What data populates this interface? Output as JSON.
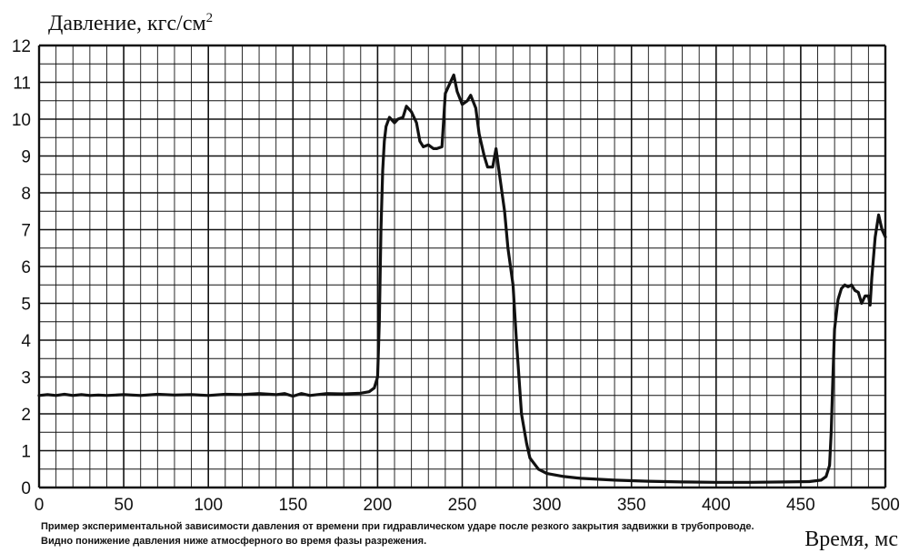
{
  "chart_data": {
    "type": "line",
    "ylabel_main": "Давление, кгс/см",
    "ylabel_sup": "2",
    "xlabel": "Время, мс",
    "caption": [
      "Пример экспериментальной зависимости давления от времени при гидравлическом ударе после резкого закрытия задвижки в трубопроводе.",
      "Видно понижение давления ниже атмосферного во время фазы разрежения."
    ],
    "xlim": [
      0,
      500
    ],
    "ylim": [
      0,
      12
    ],
    "x_ticks": [
      0,
      50,
      100,
      150,
      200,
      250,
      300,
      350,
      400,
      450,
      500
    ],
    "y_ticks": [
      0,
      1,
      2,
      3,
      4,
      5,
      6,
      7,
      8,
      9,
      10,
      11,
      12
    ],
    "grid": true,
    "colors": {
      "line": "#111111",
      "grid": "#111111",
      "background": "#ffffff"
    },
    "series": [
      {
        "x": [
          0,
          5,
          10,
          15,
          20,
          25,
          30,
          35,
          40,
          50,
          60,
          70,
          80,
          90,
          100,
          110,
          120,
          130,
          140,
          145,
          150,
          155,
          160,
          170,
          180,
          190,
          195,
          198,
          200,
          201,
          202,
          203,
          204,
          205,
          207,
          210,
          212,
          215,
          217,
          220,
          223,
          225,
          227,
          230,
          233,
          235,
          238,
          240,
          242,
          245,
          247,
          250,
          253,
          255,
          258,
          260,
          263,
          265,
          268,
          270,
          272,
          275,
          277,
          280,
          282,
          285,
          288,
          290,
          295,
          300,
          310,
          320,
          340,
          360,
          380,
          400,
          420,
          440,
          455,
          462,
          465,
          467,
          468,
          469,
          470,
          472,
          474,
          476,
          478,
          480,
          482,
          484,
          486,
          488,
          490,
          491,
          492,
          494,
          496,
          498,
          500
        ],
        "y": [
          2.5,
          2.52,
          2.5,
          2.53,
          2.5,
          2.52,
          2.5,
          2.51,
          2.5,
          2.52,
          2.5,
          2.53,
          2.51,
          2.52,
          2.5,
          2.53,
          2.52,
          2.55,
          2.52,
          2.55,
          2.48,
          2.55,
          2.5,
          2.55,
          2.54,
          2.56,
          2.6,
          2.7,
          3.0,
          4.5,
          7.0,
          8.6,
          9.4,
          9.8,
          10.05,
          9.9,
          10.0,
          10.05,
          10.35,
          10.2,
          9.9,
          9.4,
          9.25,
          9.3,
          9.2,
          9.2,
          9.25,
          10.7,
          10.9,
          11.2,
          10.75,
          10.4,
          10.5,
          10.65,
          10.3,
          9.6,
          9.0,
          8.7,
          8.7,
          9.2,
          8.5,
          7.5,
          6.5,
          5.5,
          4.0,
          2.0,
          1.2,
          0.8,
          0.5,
          0.38,
          0.3,
          0.25,
          0.2,
          0.17,
          0.15,
          0.14,
          0.14,
          0.15,
          0.16,
          0.2,
          0.3,
          0.6,
          1.5,
          3.0,
          4.3,
          5.1,
          5.4,
          5.5,
          5.45,
          5.5,
          5.35,
          5.3,
          5.0,
          5.2,
          5.2,
          4.95,
          5.7,
          6.8,
          7.4,
          7.0,
          6.8
        ]
      }
    ]
  }
}
